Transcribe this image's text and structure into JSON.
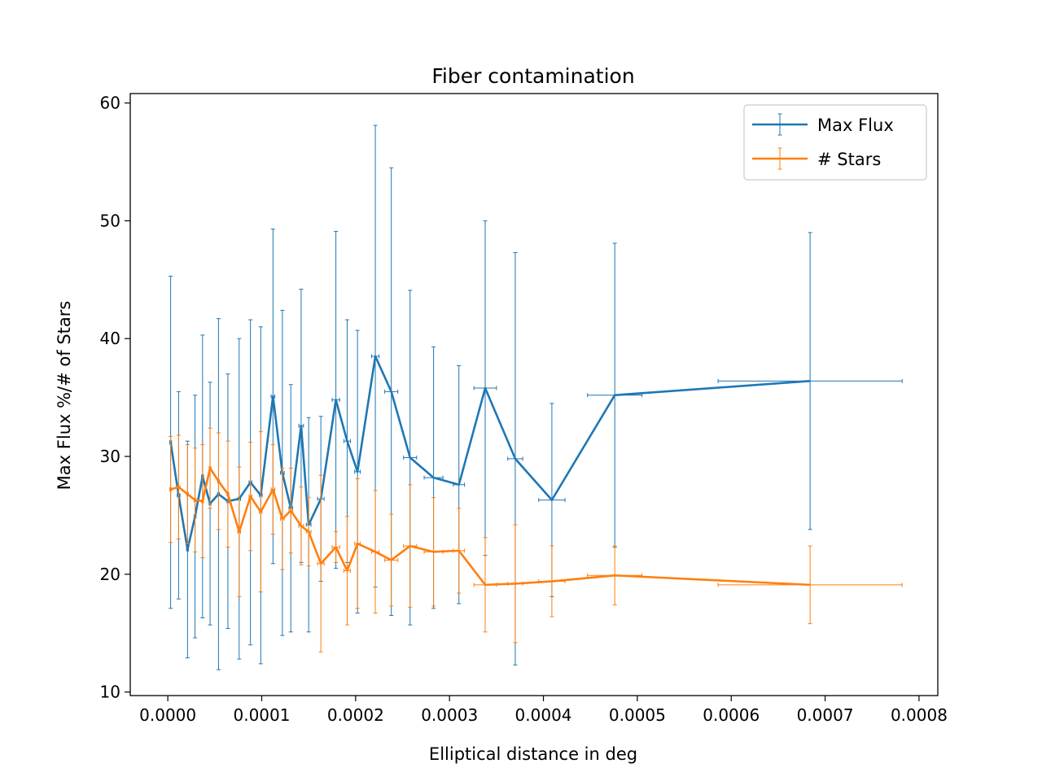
{
  "chart_data": {
    "type": "line",
    "title": "Fiber contamination",
    "xlabel": "Elliptical distance in deg",
    "ylabel": "Max Flux %/# of Stars",
    "xlim": [
      -4e-05,
      0.00082
    ],
    "ylim": [
      9.7,
      60.8
    ],
    "xticks": [
      0,
      0.0001,
      0.0002,
      0.0003,
      0.0004,
      0.0005,
      0.0006,
      0.0007,
      0.0008
    ],
    "xtick_labels": [
      "0.0000",
      "0.0001",
      "0.0002",
      "0.0003",
      "0.0004",
      "0.0005",
      "0.0006",
      "0.0007",
      "0.0008"
    ],
    "yticks": [
      10,
      20,
      30,
      40,
      50,
      60
    ],
    "ytick_labels": [
      "10",
      "20",
      "30",
      "40",
      "50",
      "60"
    ],
    "grid": false,
    "legend_position": "top-right",
    "series": [
      {
        "name": "Max Flux",
        "color": "#1f77b4",
        "points": [
          {
            "x": 3e-06,
            "y": 31.2,
            "yerr": 14.1,
            "xerr": 1e-06
          },
          {
            "x": 1.15e-05,
            "y": 26.7,
            "yerr": 8.8,
            "xerr": 1.5e-06
          },
          {
            "x": 2.1e-05,
            "y": 22.1,
            "yerr": 9.2,
            "xerr": 1e-06
          },
          {
            "x": 2.9e-05,
            "y": 24.9,
            "yerr": 10.3,
            "xerr": 1e-06
          },
          {
            "x": 3.7e-05,
            "y": 28.3,
            "yerr": 12.0,
            "xerr": 1e-06
          },
          {
            "x": 4.5e-05,
            "y": 26.0,
            "yerr": 10.3,
            "xerr": 1e-06
          },
          {
            "x": 5.4e-05,
            "y": 26.8,
            "yerr": 14.9,
            "xerr": 1e-06
          },
          {
            "x": 6.4e-05,
            "y": 26.2,
            "yerr": 10.8,
            "xerr": 1e-06
          },
          {
            "x": 7.6e-05,
            "y": 26.4,
            "yerr": 13.6,
            "xerr": 1.5e-06
          },
          {
            "x": 8.8e-05,
            "y": 27.8,
            "yerr": 13.8,
            "xerr": 1.5e-06
          },
          {
            "x": 9.9e-05,
            "y": 26.7,
            "yerr": 14.3,
            "xerr": 1.5e-06
          },
          {
            "x": 0.000112,
            "y": 35.1,
            "yerr": 14.2,
            "xerr": 2e-06
          },
          {
            "x": 0.000122,
            "y": 28.6,
            "yerr": 13.8,
            "xerr": 2e-06
          },
          {
            "x": 0.000131,
            "y": 25.6,
            "yerr": 10.5,
            "xerr": 2e-06
          },
          {
            "x": 0.000142,
            "y": 32.6,
            "yerr": 11.6,
            "xerr": 2.5e-06
          },
          {
            "x": 0.00015,
            "y": 24.2,
            "yerr": 9.1,
            "xerr": 2.5e-06
          },
          {
            "x": 0.000163,
            "y": 26.4,
            "yerr": 7.0,
            "xerr": 3.5e-06
          },
          {
            "x": 0.000179,
            "y": 34.8,
            "yerr": 14.3,
            "xerr": 4e-06
          },
          {
            "x": 0.000191,
            "y": 31.3,
            "yerr": 10.3,
            "xerr": 3.5e-06
          },
          {
            "x": 0.000202,
            "y": 28.7,
            "yerr": 12.0,
            "xerr": 3e-06
          },
          {
            "x": 0.000221,
            "y": 38.5,
            "yerr": 19.6,
            "xerr": 4e-06
          },
          {
            "x": 0.000238,
            "y": 35.5,
            "yerr": 19.0,
            "xerr": 7e-06
          },
          {
            "x": 0.000258,
            "y": 29.9,
            "yerr": 14.2,
            "xerr": 7e-06
          },
          {
            "x": 0.000283,
            "y": 28.2,
            "yerr": 11.1,
            "xerr": 1e-05
          },
          {
            "x": 0.00031,
            "y": 27.6,
            "yerr": 10.1,
            "xerr": 6e-06
          },
          {
            "x": 0.000338,
            "y": 35.8,
            "yerr": 14.2,
            "xerr": 1.2e-05
          },
          {
            "x": 0.00037,
            "y": 29.8,
            "yerr": 17.5,
            "xerr": 8e-06
          },
          {
            "x": 0.000409,
            "y": 26.3,
            "yerr": 8.2,
            "xerr": 1.4e-05
          },
          {
            "x": 0.000476,
            "y": 35.2,
            "yerr": 12.9,
            "xerr": 2.9e-05
          },
          {
            "x": 0.000684,
            "y": 36.4,
            "yerr": 12.6,
            "xerr": 9.8e-05
          }
        ]
      },
      {
        "name": "# Stars",
        "color": "#ff7f0e",
        "points": [
          {
            "x": 3e-06,
            "y": 27.2,
            "yerr": 4.5,
            "xerr": 1e-06
          },
          {
            "x": 1.15e-05,
            "y": 27.4,
            "yerr": 4.4,
            "xerr": 1.5e-06
          },
          {
            "x": 2.1e-05,
            "y": 26.8,
            "yerr": 4.2,
            "xerr": 1e-06
          },
          {
            "x": 2.9e-05,
            "y": 26.3,
            "yerr": 4.4,
            "xerr": 1e-06
          },
          {
            "x": 3.7e-05,
            "y": 26.2,
            "yerr": 4.8,
            "xerr": 1e-06
          },
          {
            "x": 4.5e-05,
            "y": 29.0,
            "yerr": 3.4,
            "xerr": 1e-06
          },
          {
            "x": 5.4e-05,
            "y": 27.9,
            "yerr": 4.1,
            "xerr": 1e-06
          },
          {
            "x": 6.4e-05,
            "y": 26.8,
            "yerr": 4.5,
            "xerr": 1e-06
          },
          {
            "x": 7.6e-05,
            "y": 23.6,
            "yerr": 5.5,
            "xerr": 1.5e-06
          },
          {
            "x": 8.8e-05,
            "y": 26.6,
            "yerr": 4.6,
            "xerr": 1.5e-06
          },
          {
            "x": 9.9e-05,
            "y": 25.3,
            "yerr": 6.8,
            "xerr": 1.5e-06
          },
          {
            "x": 0.000112,
            "y": 27.2,
            "yerr": 3.8,
            "xerr": 2e-06
          },
          {
            "x": 0.000122,
            "y": 24.7,
            "yerr": 4.3,
            "xerr": 2e-06
          },
          {
            "x": 0.000131,
            "y": 25.4,
            "yerr": 3.6,
            "xerr": 2e-06
          },
          {
            "x": 0.000142,
            "y": 24.1,
            "yerr": 3.3,
            "xerr": 2.5e-06
          },
          {
            "x": 0.00015,
            "y": 23.6,
            "yerr": 2.9,
            "xerr": 2.5e-06
          },
          {
            "x": 0.000163,
            "y": 20.9,
            "yerr": 7.5,
            "xerr": 3.5e-06
          },
          {
            "x": 0.000179,
            "y": 22.3,
            "yerr": 1.3,
            "xerr": 4e-06
          },
          {
            "x": 0.000191,
            "y": 20.3,
            "yerr": 4.6,
            "xerr": 3.5e-06
          },
          {
            "x": 0.000202,
            "y": 22.6,
            "yerr": 5.5,
            "xerr": 3e-06
          },
          {
            "x": 0.000221,
            "y": 21.9,
            "yerr": 5.2,
            "xerr": 4e-06
          },
          {
            "x": 0.000238,
            "y": 21.2,
            "yerr": 3.9,
            "xerr": 7e-06
          },
          {
            "x": 0.000258,
            "y": 22.4,
            "yerr": 5.2,
            "xerr": 7e-06
          },
          {
            "x": 0.000283,
            "y": 21.9,
            "yerr": 4.6,
            "xerr": 1e-05
          },
          {
            "x": 0.00031,
            "y": 22.0,
            "yerr": 3.6,
            "xerr": 6e-06
          },
          {
            "x": 0.000338,
            "y": 19.1,
            "yerr": 4.0,
            "xerr": 1.2e-05
          },
          {
            "x": 0.00037,
            "y": 19.2,
            "yerr": 5.0,
            "xerr": 8e-06
          },
          {
            "x": 0.000409,
            "y": 19.4,
            "yerr": 3.0,
            "xerr": 1.4e-05
          },
          {
            "x": 0.000476,
            "y": 19.9,
            "yerr": 2.5,
            "xerr": 2.9e-05
          },
          {
            "x": 0.000684,
            "y": 19.1,
            "yerr": 3.3,
            "xerr": 9.8e-05
          }
        ]
      }
    ]
  }
}
